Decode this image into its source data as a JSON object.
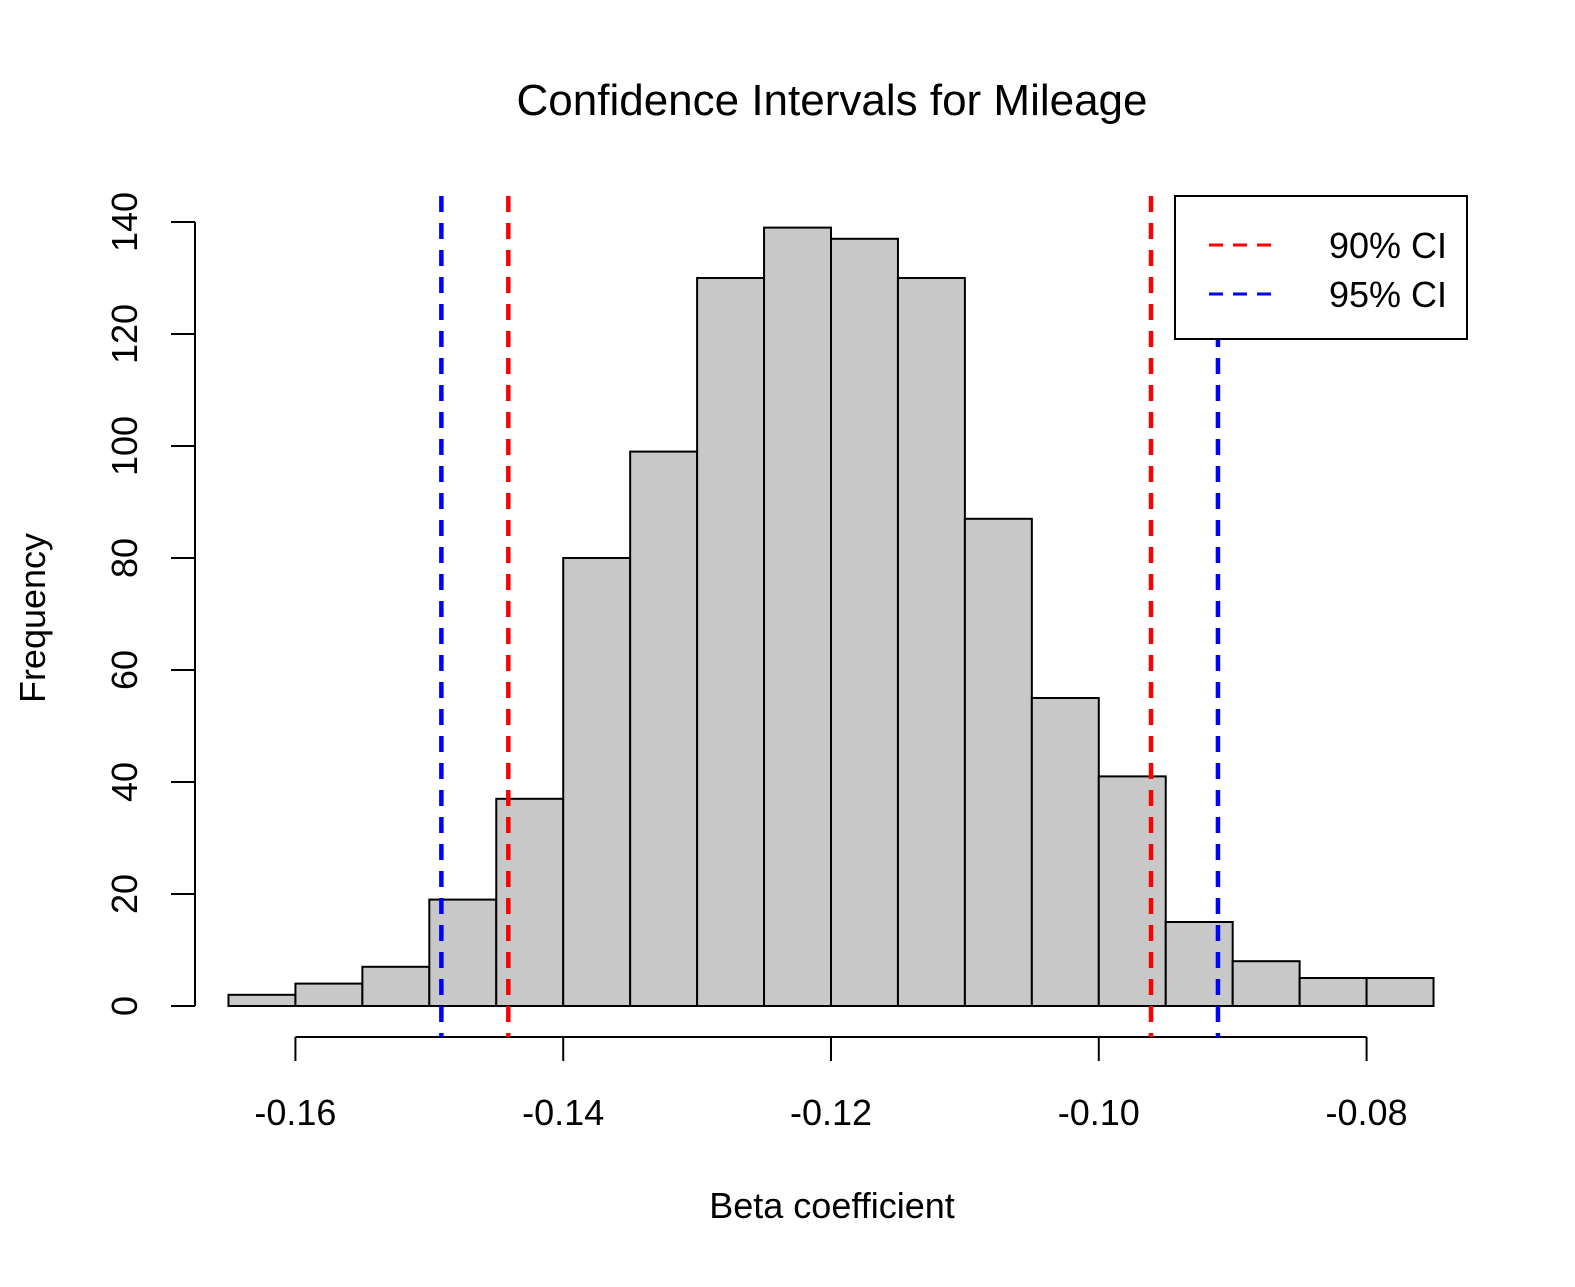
{
  "chart_data": {
    "type": "bar",
    "subtype": "histogram",
    "title": "Confidence Intervals for Mileage",
    "xlabel": "Beta coefficient",
    "ylabel": "Frequency",
    "xlim": [
      -0.1675,
      -0.0725
    ],
    "ylim": [
      0,
      140
    ],
    "x_ticks": [
      -0.16,
      -0.14,
      -0.12,
      -0.1,
      -0.08
    ],
    "x_tick_labels": [
      "-0.16",
      "-0.14",
      "-0.12",
      "-0.10",
      "-0.08"
    ],
    "y_ticks": [
      0,
      20,
      40,
      60,
      80,
      100,
      120,
      140
    ],
    "y_tick_labels": [
      "0",
      "20",
      "40",
      "60",
      "80",
      "100",
      "120",
      "140"
    ],
    "bin_edges": [
      -0.165,
      -0.16,
      -0.155,
      -0.15,
      -0.145,
      -0.14,
      -0.135,
      -0.13,
      -0.125,
      -0.12,
      -0.115,
      -0.11,
      -0.105,
      -0.1,
      -0.095,
      -0.09,
      -0.085,
      -0.08,
      -0.075
    ],
    "values": [
      2,
      4,
      7,
      19,
      37,
      80,
      99,
      130,
      139,
      137,
      130,
      87,
      55,
      41,
      15,
      8,
      5,
      5
    ],
    "bar_color": "#c8c8c8",
    "reference_lines": [
      {
        "name": "90% CI",
        "x": -0.1441,
        "color": "#ff0000",
        "style": "dashed"
      },
      {
        "name": "90% CI",
        "x": -0.0961,
        "color": "#ff0000",
        "style": "dashed"
      },
      {
        "name": "95% CI",
        "x": -0.1491,
        "color": "#0000ff",
        "style": "dashed"
      },
      {
        "name": "95% CI",
        "x": -0.0911,
        "color": "#0000ff",
        "style": "dashed"
      }
    ],
    "legend": {
      "position": "top-right",
      "entries": [
        {
          "label": "90% CI",
          "color": "#ff0000",
          "style": "dashed"
        },
        {
          "label": "95% CI",
          "color": "#0000ff",
          "style": "dashed"
        }
      ]
    },
    "grid": false
  }
}
